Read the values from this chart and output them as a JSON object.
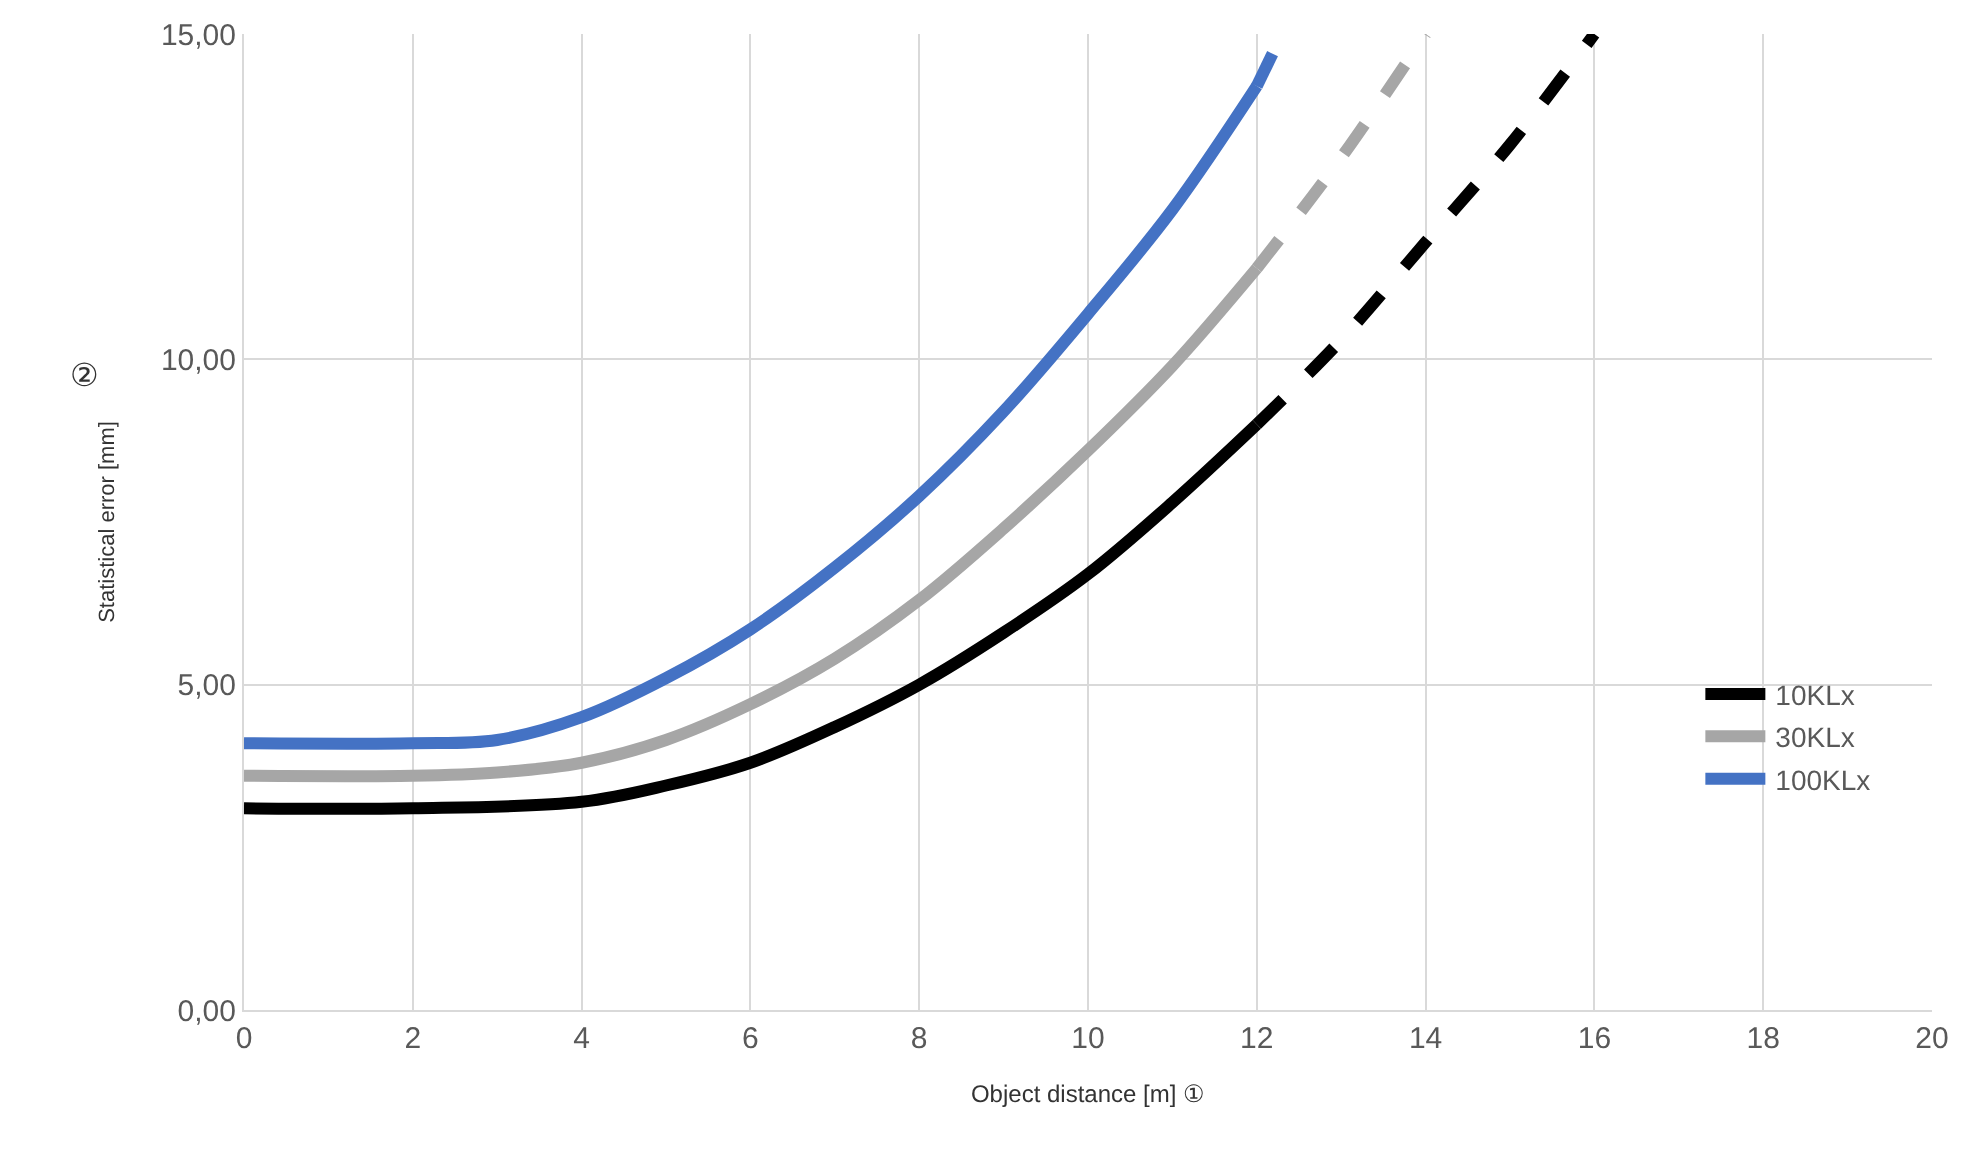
{
  "chart_data": {
    "type": "line",
    "xlabel": "Object distance [m] ①",
    "ylabel": "Statistical error [mm]",
    "annotations": [
      "②"
    ],
    "xlim": [
      0,
      20
    ],
    "xticks": [
      0,
      2,
      4,
      6,
      8,
      10,
      12,
      14,
      16,
      18,
      20
    ],
    "ylim": [
      0,
      15
    ],
    "yticks": [
      {
        "value": 0,
        "label": "0,00"
      },
      {
        "value": 5,
        "label": "5,00"
      },
      {
        "value": 10,
        "label": "10,00"
      },
      {
        "value": 15,
        "label": "15,00"
      }
    ],
    "grid": true,
    "legend": "right",
    "marker": "none",
    "series": [
      {
        "name": "10KLx",
        "color": "#000000",
        "line_style": "solid",
        "x": [
          0,
          2,
          4,
          5,
          6,
          7,
          8,
          9,
          10,
          11,
          12
        ],
        "values": [
          3.1,
          3.1,
          3.2,
          3.45,
          3.8,
          4.35,
          5.0,
          5.8,
          6.7,
          7.8,
          9.0
        ]
      },
      {
        "name": "30KLx",
        "color": "#a6a6a6",
        "line_style": "solid",
        "x": [
          0,
          2,
          3,
          4,
          5,
          6,
          7,
          8,
          9,
          10,
          11,
          12
        ],
        "values": [
          3.6,
          3.6,
          3.65,
          3.8,
          4.15,
          4.7,
          5.4,
          6.3,
          7.4,
          8.6,
          9.9,
          11.4
        ]
      },
      {
        "name": "100KLx",
        "color": "#4472c4",
        "line_style": "solid",
        "x": [
          0,
          2,
          3,
          4,
          5,
          6,
          7,
          8,
          9,
          10,
          11,
          12
        ],
        "values": [
          4.1,
          4.1,
          4.15,
          4.5,
          5.1,
          5.85,
          6.8,
          7.9,
          9.2,
          10.7,
          12.3,
          14.2
        ]
      },
      {
        "color": "#000000",
        "line_style": "dashed",
        "x": [
          12,
          13,
          14,
          15,
          16
        ],
        "values": [
          9.0,
          10.3,
          11.8,
          13.3,
          15.0
        ]
      },
      {
        "color": "#a6a6a6",
        "line_style": "dashed",
        "x": [
          12,
          13,
          14
        ],
        "values": [
          11.4,
          13.1,
          15.0
        ]
      },
      {
        "color": "#4472c4",
        "line_style": "dashed",
        "x": [
          12,
          12.3
        ],
        "values": [
          14.2,
          15.0
        ]
      }
    ]
  }
}
